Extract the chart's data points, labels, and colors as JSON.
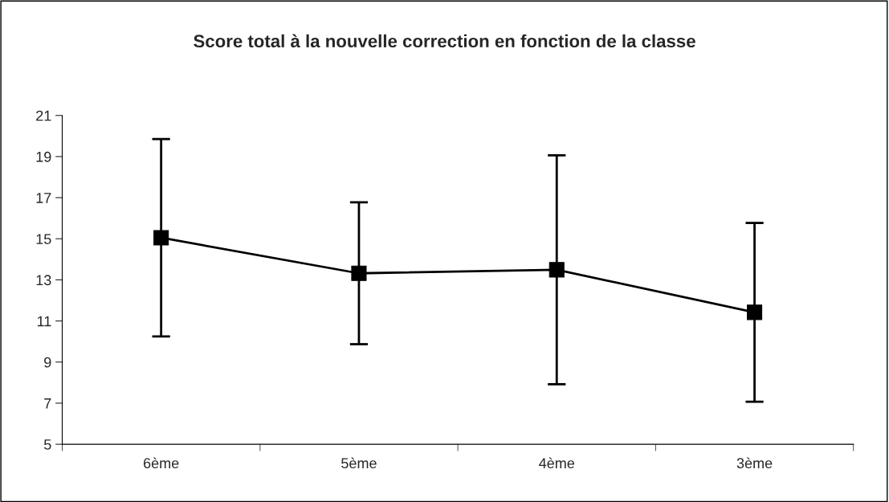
{
  "chart_data": {
    "type": "line",
    "title": "Score total à la nouvelle correction en fonction de la classe",
    "categories": [
      "6ème",
      "5ème",
      "4ème",
      "3ème"
    ],
    "values": [
      15.05,
      13.32,
      13.49,
      11.42
    ],
    "errors": [
      4.8,
      3.45,
      5.57,
      4.35
    ],
    "color": "#000000",
    "marker": "square",
    "line_style": "solid",
    "ylim": [
      5,
      21
    ],
    "yticks": [
      5,
      7,
      9,
      11,
      13,
      15,
      17,
      19,
      21
    ],
    "grid": false,
    "legend": false
  }
}
